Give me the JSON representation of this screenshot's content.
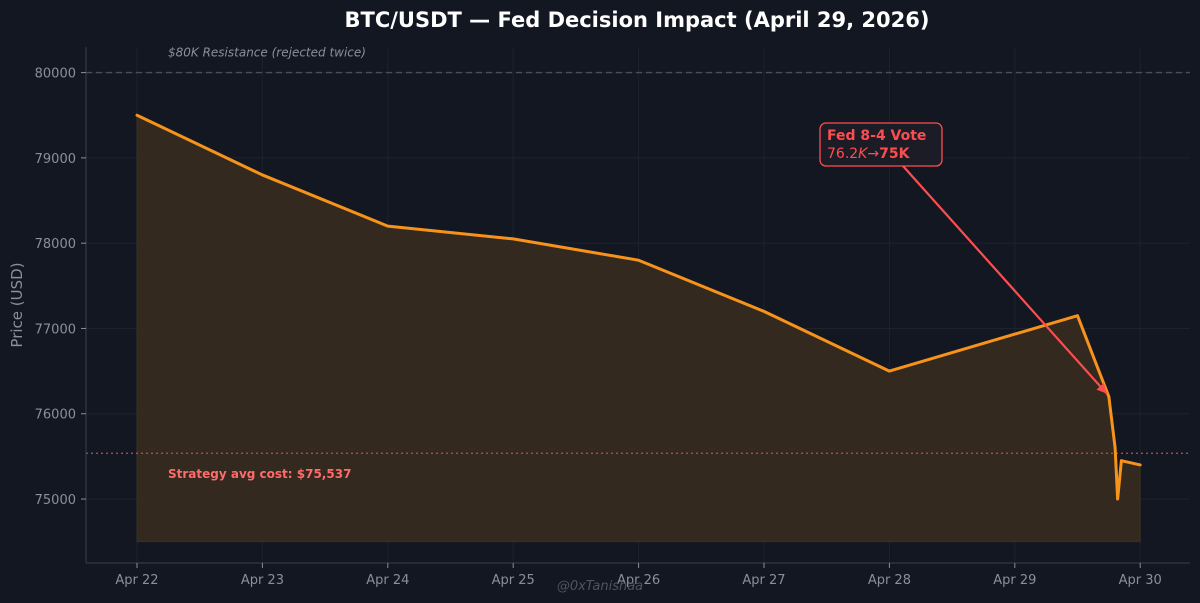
{
  "chart_data": {
    "type": "line",
    "title": "BTC/USDT — Fed Decision Impact (April 29, 2026)",
    "xlabel": "",
    "ylabel": "Price (USD)",
    "x_tick_labels": [
      "Apr 22",
      "Apr 23",
      "Apr 24",
      "Apr 25",
      "Apr 26",
      "Apr 27",
      "Apr 28",
      "Apr 29",
      "Apr 30"
    ],
    "y_ticks": [
      75000,
      76000,
      77000,
      78000,
      79000,
      80000
    ],
    "ylim": [
      74250,
      80300
    ],
    "grid": true,
    "series": [
      {
        "x": [
          0,
          1,
          2,
          3,
          4,
          5,
          6,
          7.5,
          7.75,
          7.8,
          7.82,
          7.85,
          8.0
        ],
        "values": [
          79500,
          78800,
          78200,
          78050,
          77800,
          77200,
          76500,
          77150,
          76200,
          75600,
          75000,
          75450,
          75400
        ]
      }
    ],
    "fill_baseline": 74500,
    "reference_lines": [
      {
        "y": 80000,
        "label": "$80K Resistance (rejected twice)",
        "style": "dashed",
        "color": "#4a4f5c"
      },
      {
        "y": 75537,
        "label": "Strategy avg cost: $75,537",
        "style": "dotted",
        "color": "#c0504d"
      }
    ],
    "annotation": {
      "line1": "Fed 8-4 Vote",
      "line2_prefix": "76.2",
      "line2_italic": "K",
      "line2_arrow": "→",
      "line2_bold": "75K",
      "target_x": 7.75,
      "target_y": 76200,
      "color": "#ff4d4f"
    },
    "watermark": "@0xTanishaa",
    "colors": {
      "line": "#f7931a",
      "fill": "#33291f",
      "background": "#131722",
      "axis": "#3a3f4b",
      "grid": "#1e222c"
    }
  }
}
